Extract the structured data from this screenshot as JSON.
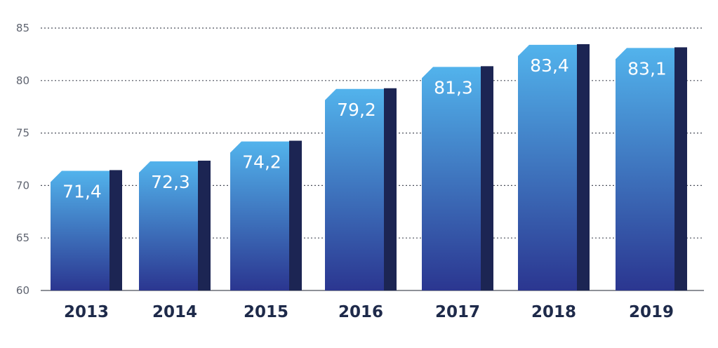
{
  "chart_data": {
    "type": "bar",
    "title": "",
    "xlabel": "",
    "ylabel": "",
    "categories": [
      "2013",
      "2014",
      "2015",
      "2016",
      "2017",
      "2018",
      "2019"
    ],
    "values": [
      71.4,
      72.3,
      74.2,
      79.2,
      81.3,
      83.4,
      83.1
    ],
    "value_labels": [
      "71,4",
      "72,3",
      "74,2",
      "79,2",
      "81,3",
      "83,4",
      "83,1"
    ],
    "ylim": [
      60,
      85
    ],
    "yticks": [
      60,
      65,
      70,
      75,
      80,
      85
    ],
    "grid": true,
    "colors": {
      "bar_top": "#52b3ec",
      "bar_bottom": "#2b3690",
      "bar_side": "#1c2553",
      "label": "#ffffff",
      "tick": "#5f6470",
      "category": "#1e2a4a"
    }
  }
}
